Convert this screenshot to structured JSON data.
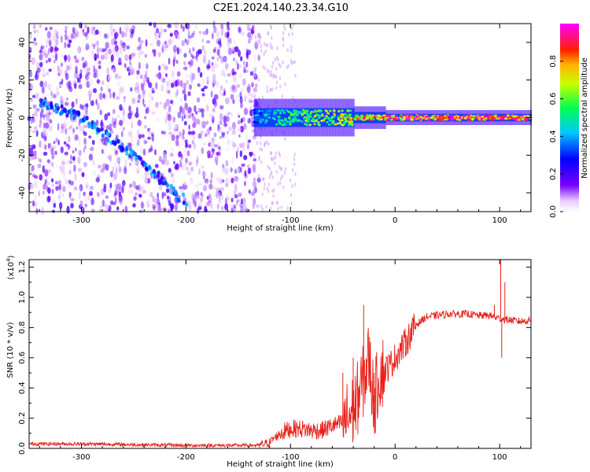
{
  "title": "C2E1.2024.140.23.34.G10",
  "chart_data": [
    {
      "type": "heatmap",
      "title": "",
      "xlabel": "Height of straight line (km)",
      "ylabel": "Frequency (Hz)",
      "xlim": [
        -350,
        130
      ],
      "ylim": [
        -50,
        50
      ],
      "x_ticks": [
        -300,
        -200,
        -100,
        0,
        100
      ],
      "y_ticks": [
        -40,
        -20,
        0,
        20,
        40
      ],
      "colorbar": {
        "label": "Normalized spectral amplitude",
        "range": [
          0,
          1
        ],
        "ticks": [
          "0.0",
          "0.2",
          "0.4",
          "0.6",
          "0.8"
        ],
        "colormap": "rainbow (white-violet-blue-cyan-green-yellow-red-magenta)"
      },
      "features": [
        {
          "description": "diffuse scattered violet noise",
          "x_range": [
            -350,
            -130
          ],
          "freq_range": [
            -50,
            50
          ],
          "amplitude": 0.15
        },
        {
          "description": "diagonal track",
          "x": [
            -340,
            -300,
            -250,
            -200
          ],
          "freq": [
            8,
            0,
            -20,
            -45
          ],
          "amplitude": 0.3
        },
        {
          "description": "carrier line",
          "x_range": [
            -135,
            130
          ],
          "freq": 0,
          "amplitude_at": [
            [
              -130,
              0.4
            ],
            [
              -80,
              0.6
            ],
            [
              0,
              0.85
            ],
            [
              100,
              0.9
            ]
          ]
        }
      ]
    },
    {
      "type": "line",
      "title": "",
      "xlabel": "Height of straight line (km)",
      "ylabel": "SNR (10 * v/v)",
      "y_multiplier": "(x10",
      "y_multiplier_exp": "4",
      "y_multiplier_close": ")",
      "xlim": [
        -350,
        130
      ],
      "ylim": [
        0,
        1.25
      ],
      "x_ticks": [
        -300,
        -200,
        -100,
        0,
        100
      ],
      "y_ticks": [
        "0.0",
        "0.2",
        "0.4",
        "0.6",
        "0.8",
        "1.0",
        "1.2"
      ],
      "series": [
        {
          "color": "#e8221b",
          "x": [
            -350,
            -300,
            -200,
            -130,
            -120,
            -110,
            -100,
            -90,
            -80,
            -70,
            -60,
            -50,
            -40,
            -30,
            -25,
            -20,
            -15,
            -10,
            -5,
            0,
            10,
            20,
            30,
            40,
            50,
            60,
            70,
            80,
            90,
            95,
            100,
            110,
            120,
            130
          ],
          "y": [
            0.03,
            0.03,
            0.02,
            0.02,
            0.04,
            0.1,
            0.13,
            0.13,
            0.12,
            0.12,
            0.15,
            0.17,
            0.25,
            0.45,
            0.6,
            0.3,
            0.5,
            0.52,
            0.55,
            0.6,
            0.7,
            0.82,
            0.87,
            0.88,
            0.89,
            0.89,
            0.89,
            0.88,
            0.88,
            0.87,
            0.86,
            0.85,
            0.84,
            0.85
          ],
          "spikes": [
            [
              -50,
              0.5
            ],
            [
              -40,
              0.6
            ],
            [
              -30,
              0.95
            ],
            [
              -20,
              0.5
            ],
            [
              10,
              0.75
            ],
            [
              95,
              0.95
            ],
            [
              101,
              1.25
            ],
            [
              102,
              0.6
            ],
            [
              105,
              1.1
            ]
          ]
        }
      ]
    }
  ]
}
